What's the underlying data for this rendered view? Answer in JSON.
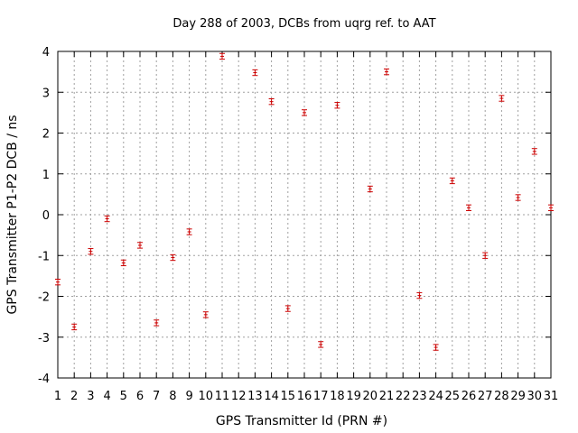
{
  "chart_data": {
    "type": "scatter",
    "title": "Day 288 of 2003, DCBs from uqrg ref. to AAT",
    "xlabel": "GPS Transmitter Id (PRN #)",
    "ylabel": "GPS Transmitter P1-P2 DCB / ns",
    "xlim": [
      1,
      31
    ],
    "ylim": [
      -4,
      4
    ],
    "x_ticks": [
      1,
      2,
      3,
      4,
      5,
      6,
      7,
      8,
      9,
      10,
      11,
      12,
      13,
      14,
      15,
      16,
      17,
      18,
      19,
      20,
      21,
      22,
      23,
      24,
      25,
      26,
      27,
      28,
      29,
      30,
      31
    ],
    "x_tick_labels": [
      "1",
      "2",
      "3",
      "4",
      "5",
      "6",
      "7",
      "8",
      "9",
      "10",
      "11",
      "12",
      "13",
      "14",
      "15",
      "16",
      "17",
      "18",
      "19",
      "20",
      "21",
      "22",
      "23",
      "24",
      "25",
      "26",
      "27",
      "28",
      "29",
      "30",
      "31"
    ],
    "y_ticks": [
      -4,
      -3,
      -2,
      -1,
      0,
      1,
      2,
      3,
      4
    ],
    "y_tick_labels": [
      "-4",
      "-3",
      "-2",
      "-1",
      "0",
      "1",
      "2",
      "3",
      "4"
    ],
    "grid": true,
    "marker_color": "#cc0000",
    "grid_color": "#a0a0a0",
    "points": [
      {
        "x": 1,
        "y": -1.65,
        "err": 0.07
      },
      {
        "x": 2,
        "y": -2.75,
        "err": 0.07
      },
      {
        "x": 3,
        "y": -0.9,
        "err": 0.07
      },
      {
        "x": 4,
        "y": -0.1,
        "err": 0.07
      },
      {
        "x": 5,
        "y": -1.18,
        "err": 0.07
      },
      {
        "x": 6,
        "y": -0.75,
        "err": 0.07
      },
      {
        "x": 7,
        "y": -2.65,
        "err": 0.07
      },
      {
        "x": 8,
        "y": -1.05,
        "err": 0.07
      },
      {
        "x": 9,
        "y": -0.42,
        "err": 0.07
      },
      {
        "x": 10,
        "y": -2.45,
        "err": 0.07
      },
      {
        "x": 11,
        "y": 3.88,
        "err": 0.07
      },
      {
        "x": 13,
        "y": 3.48,
        "err": 0.07
      },
      {
        "x": 14,
        "y": 2.77,
        "err": 0.07
      },
      {
        "x": 15,
        "y": -2.3,
        "err": 0.07
      },
      {
        "x": 16,
        "y": 2.5,
        "err": 0.07
      },
      {
        "x": 17,
        "y": -3.18,
        "err": 0.07
      },
      {
        "x": 18,
        "y": 2.68,
        "err": 0.07
      },
      {
        "x": 20,
        "y": 0.63,
        "err": 0.07
      },
      {
        "x": 21,
        "y": 3.5,
        "err": 0.07
      },
      {
        "x": 23,
        "y": -1.98,
        "err": 0.07
      },
      {
        "x": 24,
        "y": -3.25,
        "err": 0.07
      },
      {
        "x": 25,
        "y": 0.83,
        "err": 0.07
      },
      {
        "x": 26,
        "y": 0.17,
        "err": 0.07
      },
      {
        "x": 27,
        "y": -1.0,
        "err": 0.07
      },
      {
        "x": 28,
        "y": 2.85,
        "err": 0.07
      },
      {
        "x": 29,
        "y": 0.42,
        "err": 0.07
      },
      {
        "x": 30,
        "y": 1.55,
        "err": 0.07
      },
      {
        "x": 31,
        "y": 0.17,
        "err": 0.07
      }
    ]
  }
}
